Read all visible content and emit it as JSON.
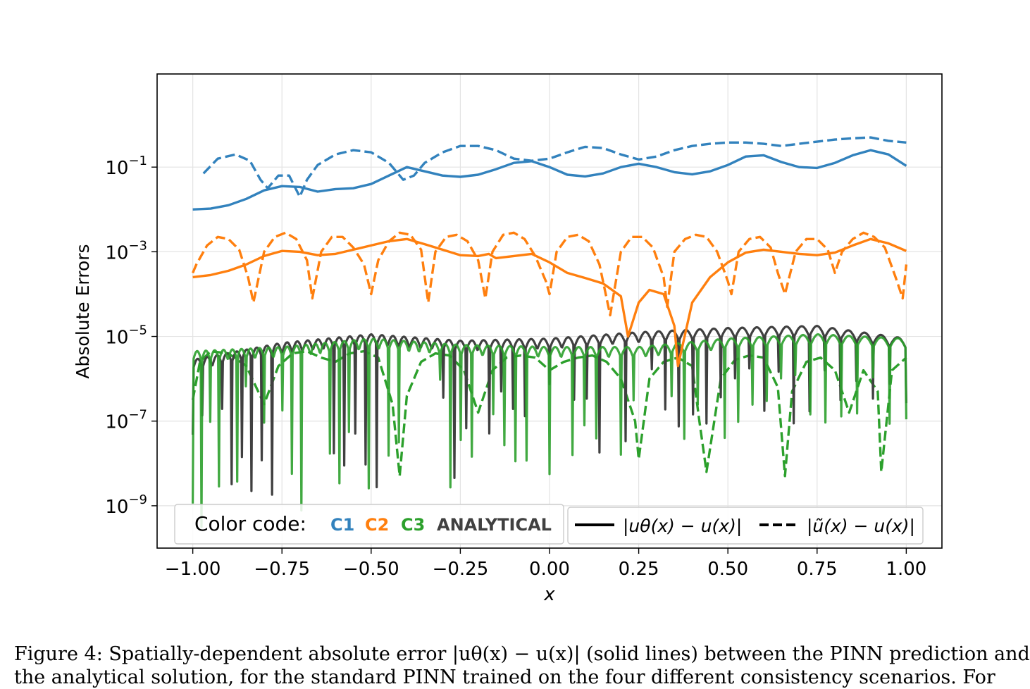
{
  "caption": {
    "line1": "Figure 4: Spatially-dependent absolute error |uθ(x) − u(x)| (solid lines) between the PINN prediction and",
    "line2": "the analytical solution, for the standard PINN trained on the four different consistency scenarios.  For"
  },
  "chart_data": {
    "type": "line",
    "xlabel": "x",
    "ylabel": "Absolute Errors",
    "xlim": [
      -1.1,
      1.1
    ],
    "ylim_log10": [
      -10.0,
      1.2
    ],
    "yscale": "log",
    "grid": true,
    "x_ticks": [
      {
        "value": -1.0,
        "label": "−1.00"
      },
      {
        "value": -0.75,
        "label": "−0.75"
      },
      {
        "value": -0.5,
        "label": "−0.50"
      },
      {
        "value": -0.25,
        "label": "−0.25"
      },
      {
        "value": 0.0,
        "label": "0.00"
      },
      {
        "value": 0.25,
        "label": "0.25"
      },
      {
        "value": 0.5,
        "label": "0.50"
      },
      {
        "value": 0.75,
        "label": "0.75"
      },
      {
        "value": 1.0,
        "label": "1.00"
      }
    ],
    "y_ticks": [
      {
        "exp": -1,
        "base": "10",
        "sup": "−1"
      },
      {
        "exp": -3,
        "base": "10",
        "sup": "−3"
      },
      {
        "exp": -5,
        "base": "10",
        "sup": "−5"
      },
      {
        "exp": -7,
        "base": "10",
        "sup": "−7"
      },
      {
        "exp": -9,
        "base": "10",
        "sup": "−9"
      }
    ],
    "legend_colors": {
      "title": "Color code:",
      "entries": [
        {
          "label": "C1",
          "color": "#3282bd"
        },
        {
          "label": "C2",
          "color": "#ff7f0e"
        },
        {
          "label": "C3",
          "color": "#2ca02c"
        },
        {
          "label": "ANALYTICAL",
          "color": "#404040"
        }
      ]
    },
    "legend_styles": {
      "solid_label": "|uθ(x) − u(x)|",
      "dashed_label": "|ũ(x) − u(x)|"
    },
    "series": [
      {
        "id": "C1-solid",
        "color": "#3282bd",
        "style": "solid",
        "x": [
          -1.0,
          -0.95,
          -0.9,
          -0.85,
          -0.8,
          -0.75,
          -0.7,
          -0.65,
          -0.6,
          -0.55,
          -0.5,
          -0.45,
          -0.4,
          -0.35,
          -0.3,
          -0.25,
          -0.2,
          -0.15,
          -0.1,
          -0.05,
          0.0,
          0.05,
          0.1,
          0.15,
          0.2,
          0.25,
          0.3,
          0.35,
          0.4,
          0.45,
          0.5,
          0.55,
          0.6,
          0.65,
          0.7,
          0.75,
          0.8,
          0.85,
          0.9,
          0.95,
          1.0
        ],
        "log10y": [
          -2.0,
          -1.98,
          -1.9,
          -1.75,
          -1.55,
          -1.45,
          -1.47,
          -1.58,
          -1.52,
          -1.5,
          -1.4,
          -1.2,
          -1.0,
          -1.1,
          -1.2,
          -1.23,
          -1.18,
          -1.05,
          -0.9,
          -0.86,
          -1.0,
          -1.18,
          -1.22,
          -1.15,
          -1.0,
          -0.92,
          -1.0,
          -1.12,
          -1.17,
          -1.1,
          -0.95,
          -0.75,
          -0.72,
          -0.88,
          -1.0,
          -1.02,
          -0.9,
          -0.72,
          -0.6,
          -0.7,
          -0.97
        ]
      },
      {
        "id": "C1-dashed",
        "color": "#3282bd",
        "style": "dashed",
        "x": [
          -0.97,
          -0.93,
          -0.88,
          -0.84,
          -0.81,
          -0.79,
          -0.76,
          -0.73,
          -0.7,
          -0.68,
          -0.65,
          -0.6,
          -0.55,
          -0.5,
          -0.45,
          -0.41,
          -0.38,
          -0.35,
          -0.3,
          -0.25,
          -0.2,
          -0.15,
          -0.1,
          -0.05,
          0.0,
          0.05,
          0.1,
          0.15,
          0.2,
          0.25,
          0.3,
          0.35,
          0.4,
          0.45,
          0.5,
          0.55,
          0.6,
          0.65,
          0.7,
          0.75,
          0.8,
          0.85,
          0.9,
          0.95,
          1.0
        ],
        "log10y": [
          -1.15,
          -0.8,
          -0.7,
          -0.85,
          -1.3,
          -1.5,
          -1.2,
          -1.2,
          -1.7,
          -1.3,
          -0.95,
          -0.7,
          -0.6,
          -0.65,
          -0.9,
          -1.3,
          -1.2,
          -0.9,
          -0.65,
          -0.5,
          -0.5,
          -0.6,
          -0.8,
          -0.85,
          -0.8,
          -0.65,
          -0.52,
          -0.55,
          -0.7,
          -0.82,
          -0.75,
          -0.6,
          -0.5,
          -0.45,
          -0.42,
          -0.42,
          -0.45,
          -0.5,
          -0.45,
          -0.4,
          -0.35,
          -0.32,
          -0.3,
          -0.38,
          -0.42
        ]
      },
      {
        "id": "C2-solid",
        "color": "#ff7f0e",
        "style": "solid",
        "x": [
          -1.0,
          -0.95,
          -0.9,
          -0.85,
          -0.8,
          -0.75,
          -0.7,
          -0.65,
          -0.6,
          -0.55,
          -0.5,
          -0.45,
          -0.4,
          -0.35,
          -0.3,
          -0.25,
          -0.2,
          -0.17,
          -0.15,
          -0.1,
          -0.05,
          0.0,
          0.05,
          0.1,
          0.15,
          0.2,
          0.22,
          0.25,
          0.28,
          0.32,
          0.35,
          0.36,
          0.4,
          0.45,
          0.5,
          0.55,
          0.6,
          0.65,
          0.7,
          0.75,
          0.8,
          0.85,
          0.9,
          0.95,
          1.0
        ],
        "log10y": [
          -3.6,
          -3.55,
          -3.45,
          -3.3,
          -3.1,
          -2.98,
          -3.0,
          -3.08,
          -3.05,
          -2.95,
          -2.85,
          -2.75,
          -2.7,
          -2.82,
          -2.95,
          -3.08,
          -3.1,
          -3.05,
          -3.15,
          -3.1,
          -3.05,
          -3.25,
          -3.5,
          -3.62,
          -3.75,
          -4.05,
          -5.0,
          -4.2,
          -3.9,
          -4.0,
          -4.75,
          -5.7,
          -4.2,
          -3.6,
          -3.25,
          -3.02,
          -2.95,
          -3.0,
          -3.05,
          -3.08,
          -3.02,
          -2.85,
          -2.7,
          -2.8,
          -2.98
        ]
      },
      {
        "id": "C2-dashed",
        "color": "#ff7f0e",
        "style": "dashed",
        "x": [
          -1.0,
          -0.99,
          -0.96,
          -0.93,
          -0.9,
          -0.87,
          -0.845,
          -0.83,
          -0.8,
          -0.77,
          -0.74,
          -0.71,
          -0.68,
          -0.665,
          -0.64,
          -0.61,
          -0.58,
          -0.55,
          -0.52,
          -0.5,
          -0.48,
          -0.45,
          -0.42,
          -0.39,
          -0.36,
          -0.34,
          -0.32,
          -0.29,
          -0.26,
          -0.23,
          -0.2,
          -0.18,
          -0.16,
          -0.13,
          -0.1,
          -0.07,
          -0.04,
          -0.01,
          0.0,
          0.02,
          0.05,
          0.08,
          0.11,
          0.14,
          0.17,
          0.18,
          0.2,
          0.23,
          0.26,
          0.29,
          0.32,
          0.33,
          0.35,
          0.38,
          0.41,
          0.44,
          0.47,
          0.5,
          0.51,
          0.53,
          0.56,
          0.59,
          0.62,
          0.64,
          0.66,
          0.69,
          0.72,
          0.75,
          0.78,
          0.8,
          0.82,
          0.85,
          0.88,
          0.91,
          0.94,
          0.97,
          0.99,
          1.0
        ],
        "log10y": [
          -3.5,
          -3.3,
          -2.85,
          -2.65,
          -2.7,
          -2.95,
          -3.6,
          -4.2,
          -3.0,
          -2.65,
          -2.55,
          -2.7,
          -3.2,
          -4.1,
          -3.0,
          -2.65,
          -2.65,
          -2.9,
          -3.3,
          -4.0,
          -3.2,
          -2.75,
          -2.55,
          -2.6,
          -2.95,
          -4.2,
          -3.0,
          -2.65,
          -2.6,
          -2.75,
          -3.2,
          -4.1,
          -3.0,
          -2.6,
          -2.55,
          -2.7,
          -3.1,
          -3.7,
          -4.0,
          -3.0,
          -2.65,
          -2.6,
          -2.75,
          -3.3,
          -4.5,
          -4.0,
          -3.0,
          -2.65,
          -2.65,
          -2.9,
          -3.6,
          -4.3,
          -3.0,
          -2.7,
          -2.6,
          -2.65,
          -3.0,
          -3.7,
          -4.0,
          -3.0,
          -2.7,
          -2.65,
          -2.9,
          -3.5,
          -4.0,
          -3.0,
          -2.7,
          -2.7,
          -2.95,
          -3.5,
          -3.0,
          -2.7,
          -2.55,
          -2.65,
          -2.9,
          -3.6,
          -4.1,
          -3.3
        ]
      },
      {
        "id": "ANALYTICAL",
        "color": "#404040",
        "style": "osc",
        "x": [
          -1.0,
          -0.75,
          -0.5,
          -0.25,
          0.0,
          0.25,
          0.5,
          0.75,
          1.0
        ],
        "log10y": [
          -5.8,
          -5.4,
          -5.2,
          -5.35,
          -5.3,
          -5.15,
          -5.05,
          -5.0,
          -5.3
        ]
      },
      {
        "id": "C3-solid",
        "color": "#2ca02c",
        "style": "osc",
        "x": [
          -1.0,
          -0.75,
          -0.5,
          -0.25,
          0.0,
          0.25,
          0.5,
          0.75,
          1.0
        ],
        "log10y": [
          -5.6,
          -5.5,
          -5.3,
          -5.45,
          -5.5,
          -5.5,
          -5.3,
          -5.2,
          -5.3
        ]
      },
      {
        "id": "C3-dashed",
        "color": "#2ca02c",
        "style": "dashed",
        "x": [
          -1.0,
          -0.98,
          -0.95,
          -0.9,
          -0.85,
          -0.8,
          -0.76,
          -0.72,
          -0.68,
          -0.64,
          -0.6,
          -0.56,
          -0.52,
          -0.48,
          -0.44,
          -0.42,
          -0.4,
          -0.36,
          -0.32,
          -0.28,
          -0.24,
          -0.2,
          -0.16,
          -0.12,
          -0.08,
          -0.04,
          0.0,
          0.04,
          0.08,
          0.12,
          0.16,
          0.2,
          0.24,
          0.25,
          0.28,
          0.32,
          0.36,
          0.4,
          0.42,
          0.44,
          0.48,
          0.52,
          0.56,
          0.6,
          0.64,
          0.66,
          0.68,
          0.72,
          0.76,
          0.8,
          0.84,
          0.88,
          0.92,
          0.93,
          0.96,
          1.0
        ],
        "log10y": [
          -6.5,
          -5.6,
          -5.35,
          -5.4,
          -5.7,
          -6.6,
          -5.7,
          -5.4,
          -5.35,
          -5.5,
          -5.6,
          -5.4,
          -5.35,
          -5.5,
          -6.6,
          -8.3,
          -6.4,
          -5.6,
          -5.4,
          -5.45,
          -5.8,
          -6.8,
          -5.8,
          -5.5,
          -5.45,
          -5.5,
          -5.8,
          -5.6,
          -5.5,
          -5.45,
          -5.6,
          -6.0,
          -7.0,
          -7.9,
          -6.0,
          -5.6,
          -5.5,
          -5.7,
          -7.0,
          -8.2,
          -6.0,
          -5.55,
          -5.45,
          -5.5,
          -6.2,
          -8.3,
          -6.3,
          -5.6,
          -5.5,
          -5.8,
          -6.8,
          -5.8,
          -6.3,
          -8.2,
          -5.8,
          -5.5
        ]
      }
    ]
  }
}
